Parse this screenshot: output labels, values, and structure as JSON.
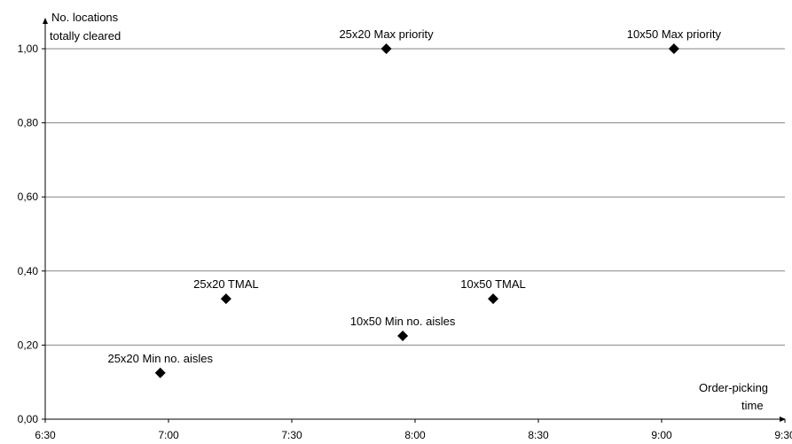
{
  "chart_data": {
    "type": "scatter",
    "title": "",
    "ylabel_lines": [
      "No. locations",
      "totally cleared"
    ],
    "xlabel_lines": [
      "Order-picking",
      "time"
    ],
    "x_min": "6:30",
    "x_max": "9:30",
    "xlim": [
      "6:30",
      "9:30"
    ],
    "ylim": [
      0,
      1.1
    ],
    "x_ticks": [
      "6:30",
      "7:00",
      "7:30",
      "8:00",
      "8:30",
      "9:00",
      "9:30"
    ],
    "y_ticks": [
      {
        "value": 0,
        "label": "0,00"
      },
      {
        "value": 0.2,
        "label": "0,20"
      },
      {
        "value": 0.4,
        "label": "0,40"
      },
      {
        "value": 0.6,
        "label": "0,60"
      },
      {
        "value": 0.8,
        "label": "0,80"
      },
      {
        "value": 1.0,
        "label": "1,00"
      }
    ],
    "grid": "horizontal",
    "marker": "diamond",
    "marker_color": "#000000",
    "gridline_color": "#868686",
    "points": [
      {
        "label": "25x20 Min no. aisles",
        "x": "6:58",
        "y": 0.125
      },
      {
        "label": "25x20 TMAL",
        "x": "7:14",
        "y": 0.325
      },
      {
        "label": "25x20 Max priority",
        "x": "7:53",
        "y": 1.0
      },
      {
        "label": "10x50 Min no. aisles",
        "x": "7:57",
        "y": 0.225
      },
      {
        "label": "10x50 TMAL",
        "x": "8:19",
        "y": 0.325
      },
      {
        "label": "10x50 Max priority",
        "x": "9:03",
        "y": 1.0
      }
    ]
  }
}
